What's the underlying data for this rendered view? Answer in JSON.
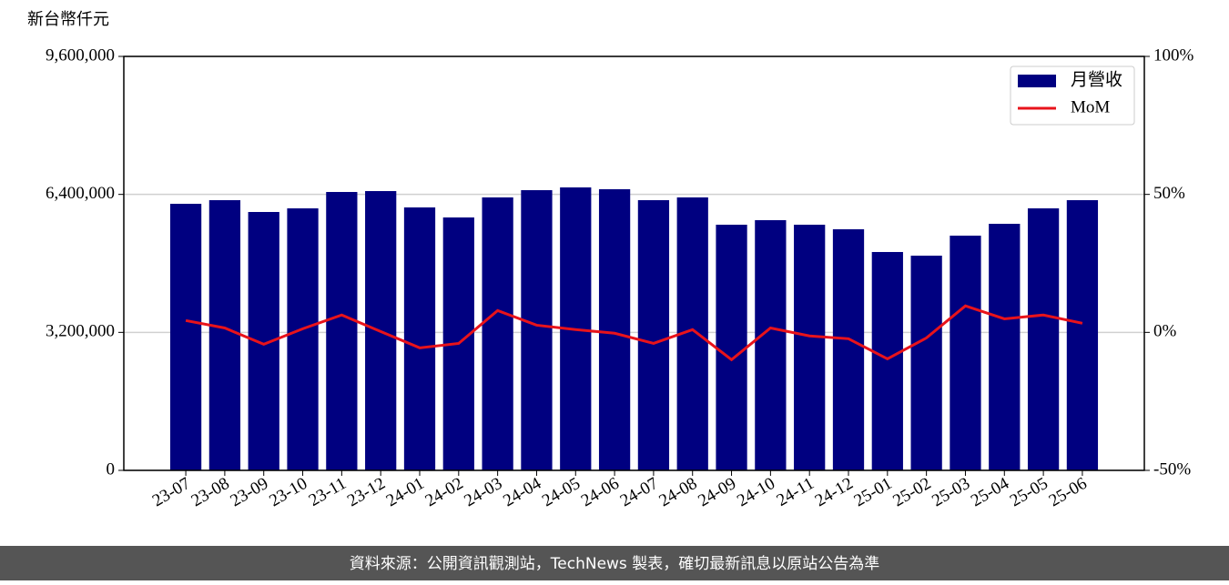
{
  "chart_data": {
    "type": "bar",
    "ylabel": "新台幣仟元",
    "source": "資料來源：公開資訊觀測站，TechNews 製表，確切最新訊息以原站公告為準",
    "categories": [
      "23-07",
      "23-08",
      "23-09",
      "23-10",
      "23-11",
      "23-12",
      "24-01",
      "24-02",
      "24-03",
      "24-04",
      "24-05",
      "24-06",
      "24-07",
      "24-08",
      "24-09",
      "24-10",
      "24-11",
      "24-12",
      "25-01",
      "25-02",
      "25-03",
      "25-04",
      "25-05",
      "25-06"
    ],
    "series": [
      {
        "name": "月營收",
        "type": "bar",
        "color": "#000080",
        "axis": "y",
        "values": [
          6182000,
          6266000,
          5992000,
          6076000,
          6456000,
          6477000,
          6098000,
          5865000,
          6330000,
          6498000,
          6562000,
          6520000,
          6266000,
          6330000,
          5697000,
          5802000,
          5697000,
          5591000,
          5064000,
          4979000,
          5443000,
          5718000,
          6076000,
          6266000
        ]
      },
      {
        "name": "MoM",
        "type": "line",
        "color": "#e8131b",
        "axis": "y2",
        "values": [
          4.3,
          1.6,
          -4.3,
          1.3,
          6.3,
          0.3,
          -5.6,
          -4.0,
          7.9,
          2.6,
          1.0,
          -0.3,
          -4.0,
          1.0,
          -9.9,
          1.6,
          -1.3,
          -2.3,
          -9.6,
          -2.0,
          9.6,
          4.9,
          6.3,
          3.3
        ]
      }
    ],
    "ylim": [
      0,
      9600000
    ],
    "yticks": [
      0,
      {
        "value": 3200000,
        "label": "3,200,000"
      },
      {
        "value": 6400000,
        "label": "6,400,000"
      },
      {
        "value": 9600000,
        "label": "9,600,000"
      }
    ],
    "y2lim": [
      -50,
      100
    ],
    "y2ticks": [
      {
        "value": -50,
        "label": "-50%"
      },
      {
        "value": 0,
        "label": "0%"
      },
      {
        "value": 50,
        "label": "50%"
      },
      {
        "value": 100,
        "label": "100%"
      }
    ],
    "grid": true,
    "legend": "upper right"
  }
}
